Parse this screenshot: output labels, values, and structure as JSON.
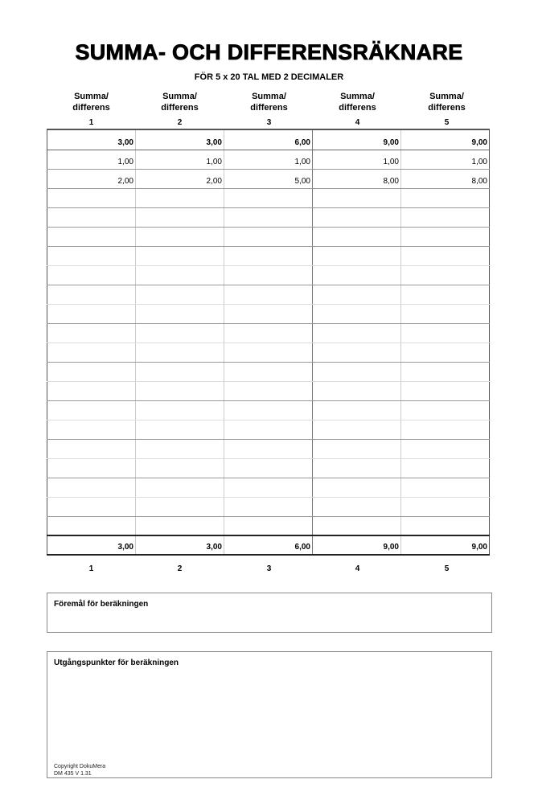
{
  "title": "SUMMA- OCH DIFFERENSRÄKNARE",
  "subtitle": "FÖR 5 x 20 TAL MED 2 DECIMALER",
  "columns": [
    {
      "line1": "Summa/",
      "line2": "differens",
      "number": "1"
    },
    {
      "line1": "Summa/",
      "line2": "differens",
      "number": "2"
    },
    {
      "line1": "Summa/",
      "line2": "differens",
      "number": "3"
    },
    {
      "line1": "Summa/",
      "line2": "differens",
      "number": "4"
    },
    {
      "line1": "Summa/",
      "line2": "differens",
      "number": "5"
    }
  ],
  "top_result": [
    "3,00",
    "3,00",
    "6,00",
    "9,00",
    "9,00"
  ],
  "rows": [
    [
      "1,00",
      "1,00",
      "1,00",
      "1,00",
      "1,00"
    ],
    [
      "2,00",
      "2,00",
      "5,00",
      "8,00",
      "8,00"
    ],
    [
      "",
      "",
      "",
      "",
      ""
    ],
    [
      "",
      "",
      "",
      "",
      ""
    ],
    [
      "",
      "",
      "",
      "",
      ""
    ],
    [
      "",
      "",
      "",
      "",
      ""
    ],
    [
      "",
      "",
      "",
      "",
      ""
    ],
    [
      "",
      "",
      "",
      "",
      ""
    ],
    [
      "",
      "",
      "",
      "",
      ""
    ],
    [
      "",
      "",
      "",
      "",
      ""
    ],
    [
      "",
      "",
      "",
      "",
      ""
    ],
    [
      "",
      "",
      "",
      "",
      ""
    ],
    [
      "",
      "",
      "",
      "",
      ""
    ],
    [
      "",
      "",
      "",
      "",
      ""
    ],
    [
      "",
      "",
      "",
      "",
      ""
    ],
    [
      "",
      "",
      "",
      "",
      ""
    ],
    [
      "",
      "",
      "",
      "",
      ""
    ],
    [
      "",
      "",
      "",
      "",
      ""
    ],
    [
      "",
      "",
      "",
      "",
      ""
    ],
    [
      "",
      "",
      "",
      "",
      ""
    ]
  ],
  "bottom_result": [
    "3,00",
    "3,00",
    "6,00",
    "9,00",
    "9,00"
  ],
  "bottom_numbers": [
    "1",
    "2",
    "3",
    "4",
    "5"
  ],
  "purpose_label": "Föremål för beräkningen",
  "basis_label": "Utgångspunkter för beräkningen",
  "copyright": "Copyright DokuMera",
  "version": "DM 435 V 1.31"
}
